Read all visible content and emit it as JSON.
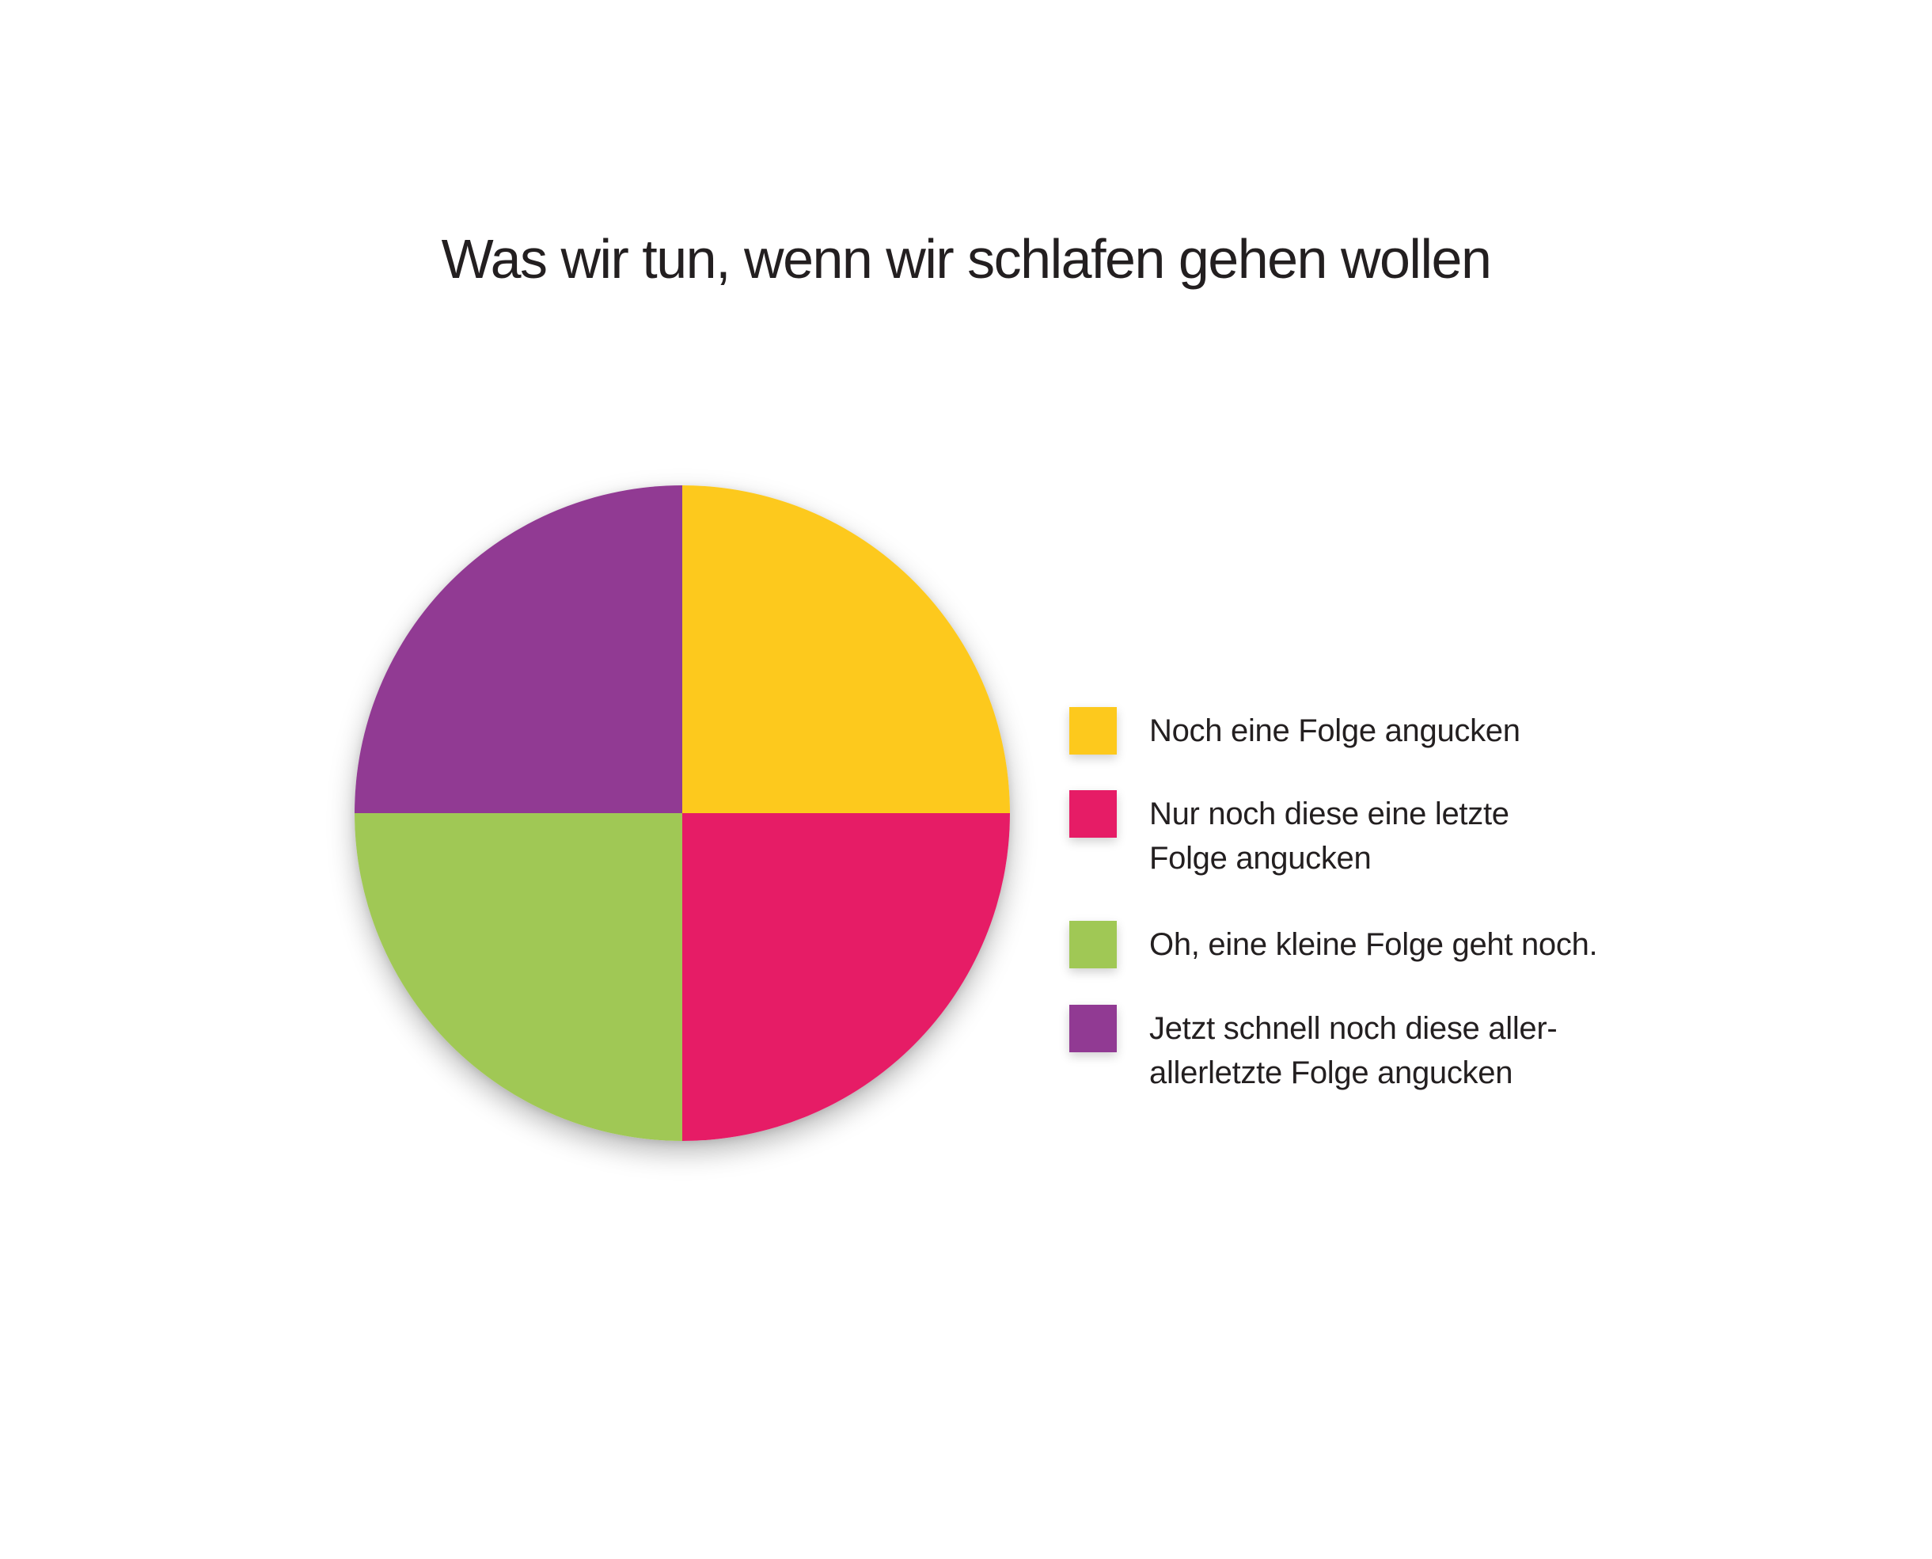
{
  "page": {
    "background_color": "#ffffff",
    "text_color": "#231f20"
  },
  "chart_data": {
    "type": "pie",
    "title": "Was wir tun, wenn wir schlafen gehen wollen",
    "unit": "percent",
    "start_angle_deg": 0,
    "direction": "clockwise",
    "legend_position": "right",
    "data_labels_shown": false,
    "slices": [
      {
        "label": "Noch eine Folge angucken",
        "legend_label": "Noch eine Folge angucken",
        "value": 25,
        "color": "#fdc91d",
        "position": "top-right"
      },
      {
        "label": "Nur noch diese eine letzte Folge angucken",
        "legend_label": "Nur noch diese eine letzte\nFolge angucken",
        "value": 25,
        "color": "#e61c66",
        "position": "bottom-right"
      },
      {
        "label": "Oh, eine kleine Folge geht noch.",
        "legend_label": "Oh, eine kleine Folge geht noch.",
        "value": 25,
        "color": "#a0c855",
        "position": "bottom-left"
      },
      {
        "label": "Jetzt schnell noch diese aller-allerletzte Folge angucken",
        "legend_label": "Jetzt schnell noch diese aller-\nallerletzte Folge angucken",
        "value": 25,
        "color": "#913a93",
        "position": "top-left"
      }
    ]
  }
}
